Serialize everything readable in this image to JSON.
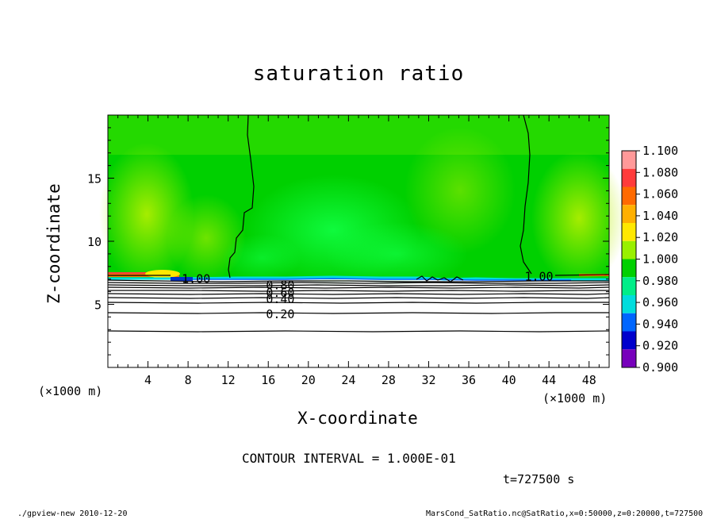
{
  "chart_data": {
    "type": "heatmap",
    "title": "saturation ratio",
    "xlabel": "X-coordinate",
    "ylabel": "Z-coordinate",
    "x_unit_left": "(×1000 m)",
    "x_unit_right": "(×1000 m)",
    "xlim": [
      0,
      50
    ],
    "ylim": [
      0,
      20
    ],
    "x_ticks": [
      "4",
      "8",
      "12",
      "16",
      "20",
      "24",
      "28",
      "32",
      "36",
      "40",
      "44",
      "48"
    ],
    "x_tick_values": [
      4,
      8,
      12,
      16,
      20,
      24,
      28,
      32,
      36,
      40,
      44,
      48
    ],
    "y_ticks": [
      "5",
      "10",
      "15"
    ],
    "y_tick_values": [
      5,
      10,
      15
    ],
    "colorbar": {
      "levels": [
        "1.100",
        "1.080",
        "1.060",
        "1.040",
        "1.020",
        "1.000",
        "0.980",
        "0.960",
        "0.940",
        "0.920",
        "0.900"
      ],
      "colors": [
        "#ff9999",
        "#ff3b3b",
        "#ff6a00",
        "#ffb000",
        "#ffe800",
        "#99f000",
        "#00d000",
        "#00ee88",
        "#00dddd",
        "#0066ff",
        "#0000cc",
        "#7700bb"
      ]
    },
    "contour_labels": [
      {
        "text": "1.00",
        "x": 8.8,
        "z": 7.0
      },
      {
        "text": "1.00",
        "x": 43.0,
        "z": 7.2
      },
      {
        "text": "0.80",
        "x": 17.2,
        "z": 6.5
      },
      {
        "text": "0.60",
        "x": 17.2,
        "z": 5.9
      },
      {
        "text": "0.40",
        "x": 17.2,
        "z": 5.4
      },
      {
        "text": "0.20",
        "x": 17.2,
        "z": 4.2
      }
    ],
    "contour_interval": "CONTOUR INTERVAL = 1.000E-01",
    "time": "t=727500 s"
  },
  "footer": {
    "left": "./gpview-new   2010-12-20",
    "right": "MarsCond_SatRatio.nc@SatRatio,x=0:50000,z=0:20000,t=727500"
  }
}
